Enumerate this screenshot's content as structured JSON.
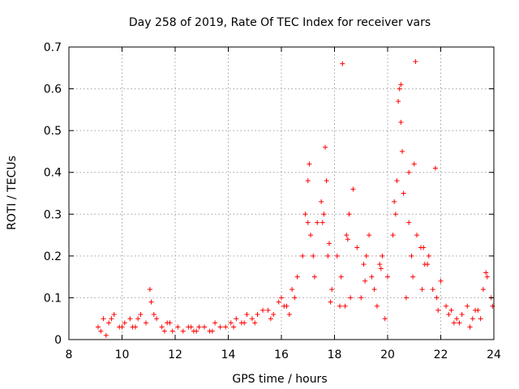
{
  "chart_data": {
    "type": "scatter",
    "title": "Day 258 of 2019, Rate Of TEC Index for receiver vars",
    "xlabel": "GPS time / hours",
    "ylabel": "ROTI / TECUs",
    "xlim": [
      8,
      24
    ],
    "ylim": [
      0,
      0.7
    ],
    "x_ticks": [
      8,
      10,
      12,
      14,
      16,
      18,
      20,
      22,
      24
    ],
    "y_ticks": [
      0,
      0.1,
      0.2,
      0.3,
      0.4,
      0.5,
      0.6,
      0.7
    ],
    "x_tick_labels": [
      "8",
      "10",
      "12",
      "14",
      "16",
      "18",
      "20",
      "22",
      "24"
    ],
    "y_tick_labels": [
      "0",
      "0.1",
      "0.2",
      "0.3",
      "0.4",
      "0.5",
      "0.6",
      "0.7"
    ],
    "grid": true,
    "marker": "+",
    "marker_color": "#ff0000",
    "series": [
      {
        "name": "ROTI",
        "x": [
          9.1,
          9.3,
          9.5,
          9.7,
          9.9,
          10.1,
          10.3,
          10.5,
          10.7,
          10.9,
          11.05,
          11.1,
          11.3,
          11.5,
          11.7,
          11.9,
          12.1,
          12.3,
          12.5,
          12.7,
          12.9,
          13.1,
          13.3,
          13.5,
          13.7,
          13.9,
          14.1,
          14.3,
          14.5,
          14.7,
          14.9,
          15.1,
          15.3,
          15.5,
          15.7,
          15.9,
          16.0,
          16.2,
          16.4,
          16.6,
          16.8,
          16.9,
          17.0,
          17.1,
          17.2,
          17.35,
          17.5,
          17.6,
          17.7,
          17.8,
          17.9,
          18.1,
          18.25,
          18.4,
          18.55,
          18.7,
          18.85,
          19.0,
          19.2,
          19.4,
          19.6,
          19.8,
          20.0,
          20.2,
          20.35,
          20.45,
          20.5,
          20.6,
          20.8,
          20.9,
          21.0,
          21.1,
          21.25,
          21.4,
          21.55,
          21.7,
          21.85,
          22.0,
          22.2,
          22.4,
          22.6,
          22.8,
          23.0,
          23.2,
          23.4,
          23.6,
          23.75,
          23.9,
          9.2,
          9.6,
          10.0,
          10.6,
          11.2,
          11.8,
          12.6,
          13.4,
          14.2,
          15.0,
          15.6,
          16.1,
          16.5,
          17.25,
          17.75,
          18.2,
          18.6,
          19.1,
          19.5,
          19.9,
          20.7,
          21.3,
          21.9,
          22.5,
          23.1,
          23.5,
          23.95,
          9.4,
          10.4,
          11.6,
          12.8,
          14.6,
          16.3,
          17.05,
          17.55,
          18.45,
          19.3,
          19.7,
          20.3,
          20.55,
          20.95,
          21.5,
          22.3,
          23.3,
          23.7,
          17.0,
          17.65,
          18.3,
          20.4,
          20.5,
          21.05,
          21.8,
          18.5,
          19.15,
          20.25,
          20.8,
          21.35,
          17.85,
          19.75,
          22.7
        ],
        "y": [
          0.03,
          0.05,
          0.04,
          0.06,
          0.03,
          0.04,
          0.05,
          0.03,
          0.06,
          0.04,
          0.12,
          0.09,
          0.05,
          0.03,
          0.04,
          0.02,
          0.03,
          0.02,
          0.03,
          0.02,
          0.03,
          0.03,
          0.02,
          0.04,
          0.03,
          0.03,
          0.04,
          0.05,
          0.04,
          0.06,
          0.05,
          0.06,
          0.07,
          0.07,
          0.06,
          0.09,
          0.1,
          0.08,
          0.12,
          0.15,
          0.2,
          0.3,
          0.38,
          0.25,
          0.2,
          0.28,
          0.33,
          0.3,
          0.38,
          0.23,
          0.12,
          0.2,
          0.15,
          0.08,
          0.3,
          0.36,
          0.22,
          0.1,
          0.2,
          0.15,
          0.08,
          0.2,
          0.15,
          0.25,
          0.38,
          0.6,
          0.52,
          0.35,
          0.28,
          0.2,
          0.42,
          0.25,
          0.22,
          0.18,
          0.2,
          0.12,
          0.1,
          0.14,
          0.08,
          0.07,
          0.05,
          0.06,
          0.08,
          0.05,
          0.07,
          0.12,
          0.15,
          0.1,
          0.02,
          0.05,
          0.03,
          0.05,
          0.06,
          0.04,
          0.03,
          0.02,
          0.03,
          0.04,
          0.05,
          0.08,
          0.1,
          0.15,
          0.2,
          0.08,
          0.1,
          0.18,
          0.12,
          0.05,
          0.1,
          0.12,
          0.07,
          0.04,
          0.03,
          0.05,
          0.08,
          0.01,
          0.03,
          0.02,
          0.02,
          0.04,
          0.06,
          0.42,
          0.28,
          0.25,
          0.25,
          0.18,
          0.3,
          0.45,
          0.15,
          0.18,
          0.06,
          0.07,
          0.16,
          0.28,
          0.46,
          0.66,
          0.57,
          0.61,
          0.665,
          0.41,
          0.24,
          0.14,
          0.33,
          0.4,
          0.22,
          0.09,
          0.17,
          0.04
        ]
      }
    ]
  }
}
